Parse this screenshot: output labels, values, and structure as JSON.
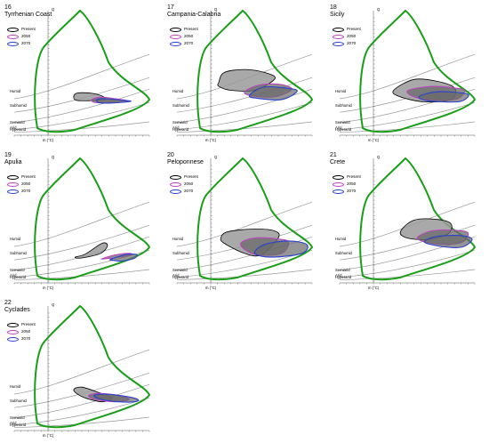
{
  "colors": {
    "envelope": "#1a9e1a",
    "present": "#000000",
    "y2050": "#c040c0",
    "y2070": "#2a3fd0",
    "fill_present": "#9a9a9a",
    "fill_future": "#6a6a6a",
    "boundaries": "#999999"
  },
  "axis_labels": {
    "y": "Q",
    "x": "m (°C)"
  },
  "zone_labels": [
    "Humid",
    "Subhumid",
    "Semiarid",
    "Arid",
    "Hyperarid"
  ],
  "legend_labels": [
    "Present",
    "2050",
    "2070"
  ],
  "chart_data": [
    {
      "type": "area",
      "number": "16",
      "name": "Tyrrhenian Coast",
      "present": [
        [
          3.8,
          96
        ],
        [
          4.4,
          105
        ],
        [
          6.5,
          104
        ],
        [
          8.0,
          97
        ],
        [
          8.4,
          88
        ],
        [
          6.0,
          85
        ],
        [
          4.2,
          86
        ]
      ],
      "y2050": [
        [
          6.5,
          88
        ],
        [
          7.8,
          94
        ],
        [
          10.0,
          90
        ],
        [
          11.8,
          84
        ],
        [
          9.5,
          80
        ],
        [
          7.0,
          80
        ]
      ],
      "y2070": [
        [
          7.3,
          88
        ],
        [
          8.5,
          90
        ],
        [
          11.2,
          86
        ],
        [
          12.2,
          83
        ],
        [
          9.5,
          79
        ],
        [
          7.5,
          80
        ]
      ]
    },
    {
      "type": "area",
      "number": "17",
      "name": "Campania-Calabria",
      "present": [
        [
          1.2,
          133
        ],
        [
          2.0,
          158
        ],
        [
          5.0,
          166
        ],
        [
          8.0,
          158
        ],
        [
          9.5,
          142
        ],
        [
          6.5,
          112
        ],
        [
          3.0,
          112
        ],
        [
          1.2,
          122
        ]
      ],
      "y2050": [
        [
          5.0,
          108
        ],
        [
          7.0,
          125
        ],
        [
          10.0,
          128
        ],
        [
          12.0,
          115
        ],
        [
          9.5,
          95
        ],
        [
          6.0,
          98
        ]
      ],
      "y2070": [
        [
          5.8,
          100
        ],
        [
          7.8,
          120
        ],
        [
          11.0,
          118
        ],
        [
          12.8,
          110
        ],
        [
          10.5,
          88
        ],
        [
          6.5,
          92
        ]
      ]
    },
    {
      "type": "area",
      "number": "18",
      "name": "Sicily",
      "present": [
        [
          3.0,
          112
        ],
        [
          6.0,
          140
        ],
        [
          9.5,
          135
        ],
        [
          12.0,
          118
        ],
        [
          11.5,
          88
        ],
        [
          7.5,
          82
        ],
        [
          3.8,
          96
        ]
      ],
      "y2050": [
        [
          5.0,
          110
        ],
        [
          8.5,
          122
        ],
        [
          12.0,
          118
        ],
        [
          13.5,
          110
        ],
        [
          12.0,
          88
        ],
        [
          7.0,
          90
        ]
      ],
      "y2070": [
        [
          6.8,
          96
        ],
        [
          9.5,
          108
        ],
        [
          13.5,
          104
        ],
        [
          14.0,
          95
        ],
        [
          12.5,
          82
        ],
        [
          8.0,
          85
        ]
      ]
    },
    {
      "type": "area",
      "number": "19",
      "name": "Apulia",
      "present": [
        [
          4.0,
          62
        ],
        [
          5.5,
          70
        ],
        [
          8.0,
          98
        ],
        [
          8.8,
          92
        ],
        [
          7.8,
          72
        ],
        [
          5.0,
          60
        ]
      ],
      "y2050": [
        [
          8.0,
          58
        ],
        [
          10.0,
          68
        ],
        [
          12.0,
          72
        ],
        [
          12.3,
          68
        ],
        [
          10.5,
          62
        ],
        [
          8.5,
          58
        ]
      ],
      "y2070": [
        [
          9.2,
          56
        ],
        [
          10.5,
          64
        ],
        [
          11.8,
          70
        ],
        [
          13.2,
          68
        ],
        [
          12.6,
          58
        ],
        [
          10.8,
          52
        ],
        [
          9.6,
          54
        ]
      ]
    },
    {
      "type": "area",
      "number": "20",
      "name": "Peloponnese",
      "present": [
        [
          1.5,
          112
        ],
        [
          2.5,
          128
        ],
        [
          6.5,
          135
        ],
        [
          9.5,
          130
        ],
        [
          10.0,
          112
        ],
        [
          7.5,
          68
        ],
        [
          5.0,
          72
        ],
        [
          2.0,
          98
        ]
      ],
      "y2050": [
        [
          4.5,
          100
        ],
        [
          6.5,
          112
        ],
        [
          9.5,
          110
        ],
        [
          11.5,
          102
        ],
        [
          10.5,
          72
        ],
        [
          7.0,
          68
        ],
        [
          5.0,
          82
        ]
      ],
      "y2070": [
        [
          6.5,
          72
        ],
        [
          8.0,
          95
        ],
        [
          11.5,
          104
        ],
        [
          14.2,
          95
        ],
        [
          13.5,
          72
        ],
        [
          9.0,
          62
        ]
      ]
    },
    {
      "type": "area",
      "number": "21",
      "name": "Crete",
      "present": [
        [
          4.0,
          128
        ],
        [
          6.0,
          158
        ],
        [
          9.5,
          160
        ],
        [
          11.5,
          148
        ],
        [
          11.0,
          122
        ],
        [
          8.0,
          108
        ],
        [
          5.0,
          112
        ]
      ],
      "y2050": [
        [
          6.5,
          110
        ],
        [
          8.5,
          130
        ],
        [
          12.0,
          132
        ],
        [
          14.0,
          125
        ],
        [
          13.0,
          100
        ],
        [
          9.5,
          96
        ]
      ],
      "y2070": [
        [
          7.5,
          102
        ],
        [
          9.5,
          116
        ],
        [
          13.0,
          118
        ],
        [
          14.6,
          108
        ],
        [
          13.0,
          88
        ],
        [
          10.0,
          90
        ]
      ]
    },
    {
      "type": "area",
      "number": "22",
      "name": "Cyclades",
      "present": [
        [
          3.8,
          100
        ],
        [
          5.0,
          108
        ],
        [
          7.8,
          92
        ],
        [
          9.5,
          80
        ],
        [
          8.0,
          70
        ],
        [
          5.2,
          82
        ]
      ],
      "y2050": [
        [
          6.0,
          86
        ],
        [
          7.5,
          92
        ],
        [
          10.5,
          86
        ],
        [
          12.0,
          76
        ],
        [
          10.0,
          70
        ],
        [
          7.0,
          76
        ]
      ],
      "y2070": [
        [
          6.8,
          86
        ],
        [
          8.5,
          90
        ],
        [
          11.5,
          84
        ],
        [
          13.3,
          76
        ],
        [
          12.8,
          70
        ],
        [
          10.5,
          70
        ],
        [
          8.0,
          76
        ]
      ]
    }
  ]
}
